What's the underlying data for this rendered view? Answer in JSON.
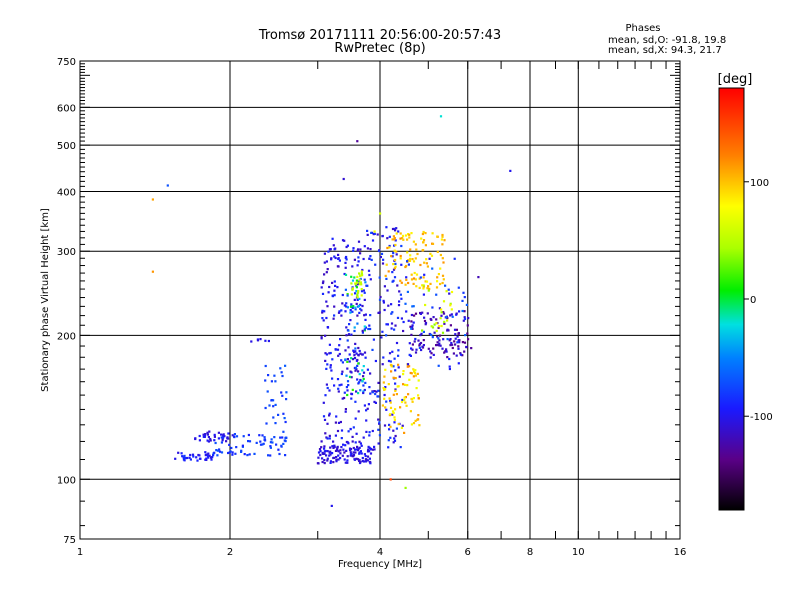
{
  "header": {
    "title_line1": "Tromsø 20171111 20:56:00-20:57:43",
    "title_line2": "RwPretec (8p)"
  },
  "stats": {
    "heading": "Phases",
    "line_o": "mean, sd,O: -91.8, 19.8",
    "line_x": "mean, sd,X:  94.3, 21.7"
  },
  "colorbar": {
    "unit": "[deg]",
    "min": -180,
    "max": 180,
    "ticks": [
      {
        "value": 100,
        "label": "100"
      },
      {
        "value": 0,
        "label": "0"
      },
      {
        "value": -100,
        "label": "-100"
      }
    ]
  },
  "chart_data": {
    "type": "scatter",
    "xlabel": "Frequency [MHz]",
    "ylabel": "Stationary phase Virtual Height [km]",
    "xscale": "log",
    "yscale": "log",
    "xlim": [
      1,
      16
    ],
    "ylim": [
      75,
      750
    ],
    "grid": true,
    "x_ticks": [
      {
        "value": 1,
        "label": "1"
      },
      {
        "value": 2,
        "label": "2"
      },
      {
        "value": 4,
        "label": "4"
      },
      {
        "value": 6,
        "label": "6"
      },
      {
        "value": 8,
        "label": "8"
      },
      {
        "value": 10,
        "label": "10"
      },
      {
        "value": 16,
        "label": "16"
      }
    ],
    "y_ticks": [
      {
        "value": 75,
        "label": "75"
      },
      {
        "value": 100,
        "label": "100"
      },
      {
        "value": 200,
        "label": "200"
      },
      {
        "value": 300,
        "label": "300"
      },
      {
        "value": 400,
        "label": "400"
      },
      {
        "value": 500,
        "label": "500"
      },
      {
        "value": 600,
        "label": "600"
      },
      {
        "value": 750,
        "label": "750"
      }
    ],
    "x_gridlines": [
      2,
      4,
      6,
      8,
      10
    ],
    "y_gridlines": [
      100,
      200,
      300,
      400,
      500,
      600
    ],
    "clusters": [
      {
        "fmin": 1.55,
        "fmax": 1.85,
        "hmin": 109,
        "hmax": 114,
        "phase": -95,
        "spread": 12,
        "count": 35
      },
      {
        "fmin": 1.7,
        "fmax": 2.05,
        "hmin": 120,
        "hmax": 126,
        "phase": -105,
        "spread": 10,
        "count": 35
      },
      {
        "fmin": 1.85,
        "fmax": 2.6,
        "hmin": 112,
        "hmax": 125,
        "phase": -80,
        "spread": 12,
        "count": 70
      },
      {
        "fmin": 2.35,
        "fmax": 2.6,
        "hmin": 125,
        "hmax": 175,
        "phase": -75,
        "spread": 10,
        "count": 30
      },
      {
        "fmin": 2.2,
        "fmax": 2.45,
        "hmin": 193,
        "hmax": 197,
        "phase": -100,
        "spread": 8,
        "count": 6
      },
      {
        "fmin": 3.0,
        "fmax": 3.9,
        "hmin": 108,
        "hmax": 118,
        "phase": -105,
        "spread": 12,
        "count": 120
      },
      {
        "fmin": 3.05,
        "fmax": 3.75,
        "hmin": 118,
        "hmax": 320,
        "phase": -100,
        "spread": 18,
        "count": 240
      },
      {
        "fmin": 3.4,
        "fmax": 3.75,
        "hmin": 150,
        "hmax": 270,
        "phase": -45,
        "spread": 70,
        "count": 70
      },
      {
        "fmin": 3.5,
        "fmax": 3.7,
        "hmin": 240,
        "hmax": 275,
        "phase": 55,
        "spread": 20,
        "count": 25
      },
      {
        "fmin": 3.75,
        "fmax": 4.45,
        "hmin": 115,
        "hmax": 340,
        "phase": -95,
        "spread": 22,
        "count": 160
      },
      {
        "fmin": 4.0,
        "fmax": 4.8,
        "hmin": 125,
        "hmax": 175,
        "phase": 95,
        "spread": 25,
        "count": 80
      },
      {
        "fmin": 4.1,
        "fmax": 5.4,
        "hmin": 250,
        "hmax": 330,
        "phase": 100,
        "spread": 18,
        "count": 110
      },
      {
        "fmin": 4.6,
        "fmax": 6.1,
        "hmin": 180,
        "hmax": 225,
        "phase": -120,
        "spread": 18,
        "count": 110
      },
      {
        "fmin": 4.4,
        "fmax": 6.0,
        "hmin": 170,
        "hmax": 290,
        "phase": -85,
        "spread": 25,
        "count": 60
      },
      {
        "fmin": 4.8,
        "fmax": 5.6,
        "hmin": 195,
        "hmax": 260,
        "phase": 60,
        "spread": 25,
        "count": 25
      }
    ],
    "isolated_points": [
      {
        "f": 1.4,
        "h": 385,
        "phase": 110
      },
      {
        "f": 1.4,
        "h": 272,
        "phase": 115
      },
      {
        "f": 1.5,
        "h": 412,
        "phase": -70
      },
      {
        "f": 1.62,
        "h": 112,
        "phase": -80
      },
      {
        "f": 3.38,
        "h": 425,
        "phase": -110
      },
      {
        "f": 3.6,
        "h": 510,
        "phase": -130
      },
      {
        "f": 5.3,
        "h": 575,
        "phase": -20
      },
      {
        "f": 7.3,
        "h": 442,
        "phase": -100
      },
      {
        "f": 6.3,
        "h": 265,
        "phase": -120
      },
      {
        "f": 6.0,
        "h": 210,
        "phase": -130
      },
      {
        "f": 3.2,
        "h": 88,
        "phase": -100
      },
      {
        "f": 4.2,
        "h": 100,
        "phase": 150
      },
      {
        "f": 4.5,
        "h": 96,
        "phase": 40
      },
      {
        "f": 4.0,
        "h": 360,
        "phase": 60
      },
      {
        "f": 3.9,
        "h": 330,
        "phase": 75
      }
    ]
  }
}
